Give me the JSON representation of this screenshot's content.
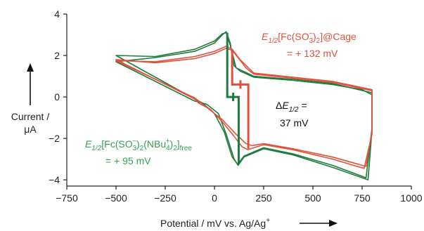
{
  "chart_data": {
    "type": "line",
    "title": "",
    "xlabel": "Potential / mV vs. Ag/Ag",
    "xlabel_sup": "+",
    "ylabel_line1": "Current /",
    "ylabel_line2": "μA",
    "xlim": [
      -750,
      1000
    ],
    "ylim": [
      -4.3,
      4
    ],
    "xticks": [
      -750,
      -500,
      -250,
      0,
      250,
      500,
      750,
      1000
    ],
    "yticks": [
      4,
      2,
      0,
      -2,
      -4
    ],
    "grid": false,
    "colors": {
      "cage": "#e0503a",
      "free": "#1f7a3c",
      "free_label": "#34a050",
      "cage_label": "#e0503a",
      "delta_label": "#111111"
    },
    "series": [
      {
        "color_key": "free",
        "points": [
          [
            -500,
            1.7
          ],
          [
            -300,
            1.9
          ],
          [
            -100,
            2.2
          ],
          [
            0,
            2.6
          ],
          [
            40,
            3.0
          ],
          [
            60,
            3.15
          ],
          [
            80,
            2.6
          ],
          [
            100,
            1.5
          ],
          [
            130,
            1.25
          ],
          [
            200,
            0.95
          ],
          [
            400,
            0.8
          ],
          [
            600,
            0.6
          ],
          [
            750,
            0.35
          ],
          [
            800,
            0.1
          ],
          [
            800,
            -1.6
          ],
          [
            780,
            -4.0
          ],
          [
            600,
            -3.4
          ],
          [
            400,
            -2.8
          ],
          [
            250,
            -2.5
          ],
          [
            150,
            -2.9
          ],
          [
            120,
            -3.3
          ],
          [
            100,
            -3.0
          ],
          [
            60,
            -1.8
          ],
          [
            20,
            -0.8
          ],
          [
            -40,
            -0.35
          ],
          [
            -100,
            -0.2
          ]
        ]
      },
      {
        "color_key": "free",
        "points": [
          [
            -500,
            2.0
          ],
          [
            -300,
            1.95
          ],
          [
            -100,
            2.3
          ],
          [
            0,
            2.7
          ],
          [
            40,
            3.05
          ],
          [
            60,
            3.1
          ],
          [
            80,
            2.5
          ],
          [
            110,
            1.4
          ],
          [
            200,
            1.0
          ],
          [
            400,
            0.85
          ],
          [
            600,
            0.65
          ],
          [
            800,
            0.2
          ],
          [
            800,
            -1.5
          ],
          [
            770,
            -3.9
          ],
          [
            600,
            -3.3
          ],
          [
            400,
            -2.75
          ],
          [
            250,
            -2.45
          ],
          [
            150,
            -2.85
          ],
          [
            118,
            -3.25
          ],
          [
            90,
            -2.9
          ],
          [
            50,
            -1.7
          ],
          [
            0,
            -0.8
          ],
          [
            -60,
            -0.3
          ],
          [
            -100,
            -0.1
          ]
        ]
      },
      {
        "color_key": "cage",
        "points": [
          [
            -500,
            1.8
          ],
          [
            -300,
            1.65
          ],
          [
            -100,
            1.85
          ],
          [
            0,
            2.1
          ],
          [
            60,
            2.35
          ],
          [
            90,
            2.25
          ],
          [
            120,
            1.9
          ],
          [
            160,
            1.4
          ],
          [
            200,
            1.1
          ],
          [
            400,
            0.9
          ],
          [
            600,
            0.7
          ],
          [
            800,
            0.3
          ],
          [
            800,
            -1.8
          ],
          [
            760,
            -3.45
          ],
          [
            600,
            -3.0
          ],
          [
            400,
            -2.55
          ],
          [
            250,
            -2.3
          ],
          [
            200,
            -2.45
          ],
          [
            170,
            -2.55
          ],
          [
            140,
            -2.4
          ],
          [
            100,
            -1.9
          ],
          [
            40,
            -1.2
          ],
          [
            -20,
            -0.6
          ],
          [
            -80,
            -0.3
          ],
          [
            -100,
            -0.1
          ]
        ]
      },
      {
        "color_key": "cage",
        "points": [
          [
            -500,
            1.75
          ],
          [
            -300,
            1.7
          ],
          [
            -100,
            1.95
          ],
          [
            0,
            2.2
          ],
          [
            60,
            2.45
          ],
          [
            90,
            2.3
          ],
          [
            130,
            1.8
          ],
          [
            200,
            1.15
          ],
          [
            400,
            0.95
          ],
          [
            600,
            0.75
          ],
          [
            800,
            0.35
          ],
          [
            800,
            -1.7
          ],
          [
            770,
            -3.35
          ],
          [
            600,
            -2.9
          ],
          [
            400,
            -2.5
          ],
          [
            250,
            -2.25
          ],
          [
            190,
            -2.35
          ],
          [
            160,
            -2.25
          ],
          [
            110,
            -1.8
          ],
          [
            40,
            -1.1
          ],
          [
            -40,
            -0.5
          ],
          [
            -100,
            -0.05
          ]
        ]
      }
    ],
    "markers": {
      "free": {
        "anodic_peak": 65,
        "cathodic_peak": 123,
        "e_half": 95
      },
      "cage": {
        "anodic_peak": 90,
        "cathodic_peak": 172,
        "e_half": 132
      }
    },
    "annotations": {
      "cage": {
        "main": "E",
        "sub1": "1/2",
        "mid1": "[Fc(SO",
        "sub2": "3",
        "sup2": "−",
        "mid2": ")",
        "sub3": "2",
        "tail": "]@Cage",
        "value": "= + 132 mV"
      },
      "free": {
        "main": "E",
        "sub1": "1/2",
        "mid1": "[Fc(SO",
        "sub2": "3",
        "sup2": "−",
        "mid2": ")",
        "sub3": "2",
        "mid3": "(NBu",
        "sub4": "4",
        "sup4": "+",
        "mid4": ")",
        "sub5": "2",
        "mid5": "]",
        "sub6": "free",
        "value": "= + 95 mV"
      },
      "delta": {
        "prefix": "Δ",
        "main": "E",
        "sub": "1/2",
        "suffix": " =",
        "value": "37 mV"
      }
    }
  }
}
